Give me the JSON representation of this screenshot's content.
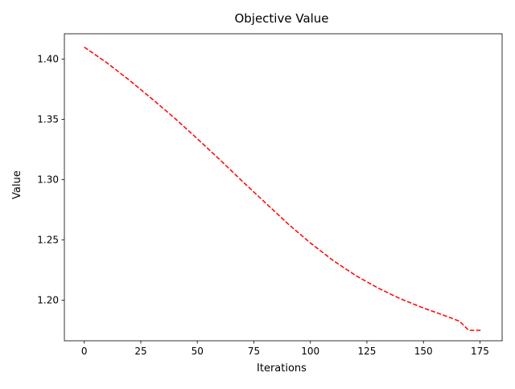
{
  "chart_data": {
    "type": "line",
    "title": "Objective Value",
    "xlabel": "Iterations",
    "ylabel": "Value",
    "xlim": [
      -8.8,
      184.8
    ],
    "ylim": [
      1.1663,
      1.4211
    ],
    "xticks": [
      0,
      25,
      50,
      75,
      100,
      125,
      150,
      175
    ],
    "xtick_labels": [
      "0",
      "25",
      "50",
      "75",
      "100",
      "125",
      "150",
      "175"
    ],
    "yticks": [
      1.2,
      1.25,
      1.3,
      1.35,
      1.4
    ],
    "ytick_labels": [
      "1.20",
      "1.25",
      "1.30",
      "1.35",
      "1.40"
    ],
    "grid": false,
    "legend": "none",
    "series": [
      {
        "color": "#ff0000",
        "linestyle": "dashed",
        "x": [
          0,
          10,
          20,
          30,
          40,
          50,
          60,
          70,
          80,
          90,
          100,
          110,
          120,
          130,
          140,
          150,
          160,
          166,
          170,
          176
        ],
        "y": [
          1.41,
          1.397,
          1.3825,
          1.367,
          1.351,
          1.334,
          1.3165,
          1.2985,
          1.281,
          1.2635,
          1.2475,
          1.233,
          1.2205,
          1.21,
          1.201,
          1.1935,
          1.1868,
          1.1825,
          1.175,
          1.175
        ]
      }
    ]
  }
}
